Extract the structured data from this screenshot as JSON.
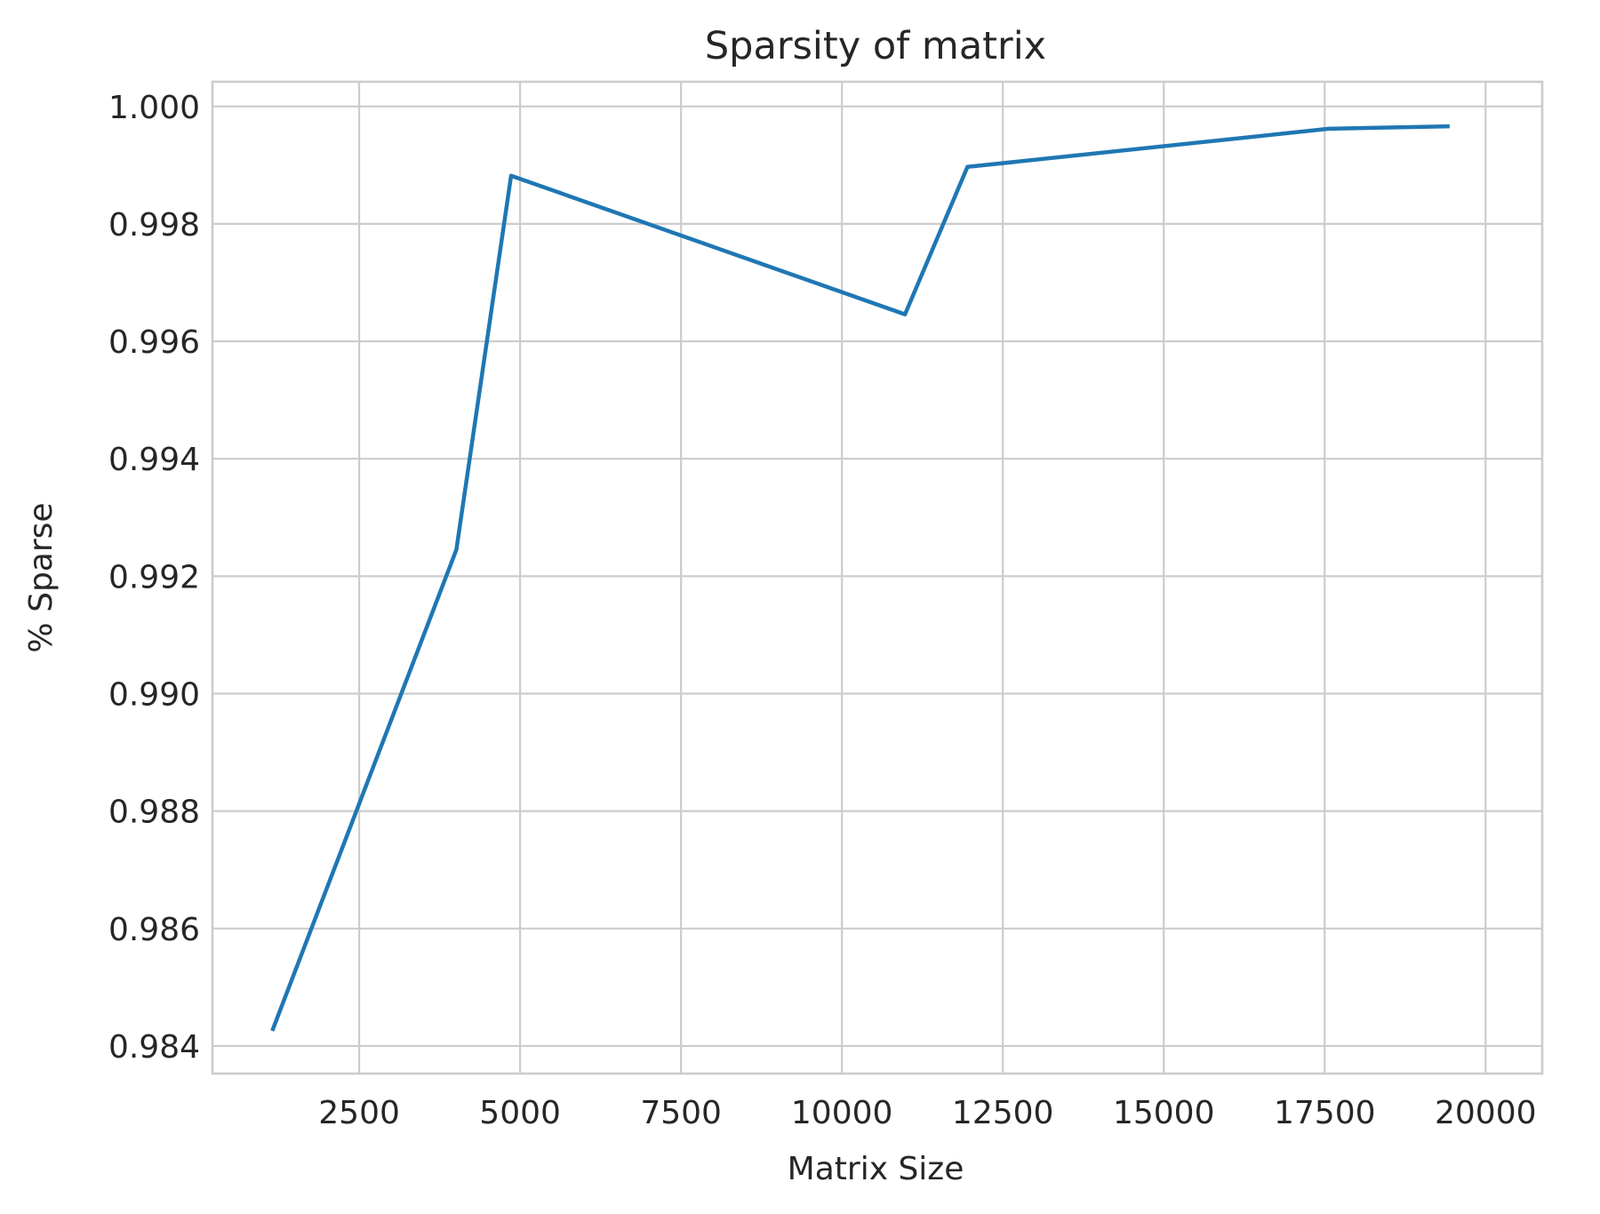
{
  "chart_data": {
    "type": "line",
    "title": "Sparsity of matrix",
    "xlabel": "Matrix Size",
    "ylabel": "% Sparse",
    "xlim": [
      220,
      20880
    ],
    "ylim": [
      0.98353,
      1.00042
    ],
    "xticks": [
      2500,
      5000,
      7500,
      10000,
      12500,
      15000,
      17500,
      20000
    ],
    "xtick_labels": [
      "2500",
      "5000",
      "7500",
      "10000",
      "12500",
      "15000",
      "17500",
      "20000"
    ],
    "yticks": [
      0.984,
      0.986,
      0.988,
      0.99,
      0.992,
      0.994,
      0.996,
      0.998,
      1.0
    ],
    "ytick_labels": [
      "0.984",
      "0.986",
      "0.988",
      "0.990",
      "0.992",
      "0.994",
      "0.996",
      "0.998",
      "1.000"
    ],
    "grid": true,
    "series": [
      {
        "color": "#1f77b4",
        "x": [
          1160,
          4010,
          4860,
          10980,
          11950,
          17560,
          19410
        ],
        "y": [
          0.98429,
          0.99245,
          0.99882,
          0.99646,
          0.99897,
          0.99962,
          0.99966
        ]
      }
    ]
  },
  "colors": {
    "grid": "#cccccc",
    "frame": "#cccccc",
    "text": "#262626"
  }
}
